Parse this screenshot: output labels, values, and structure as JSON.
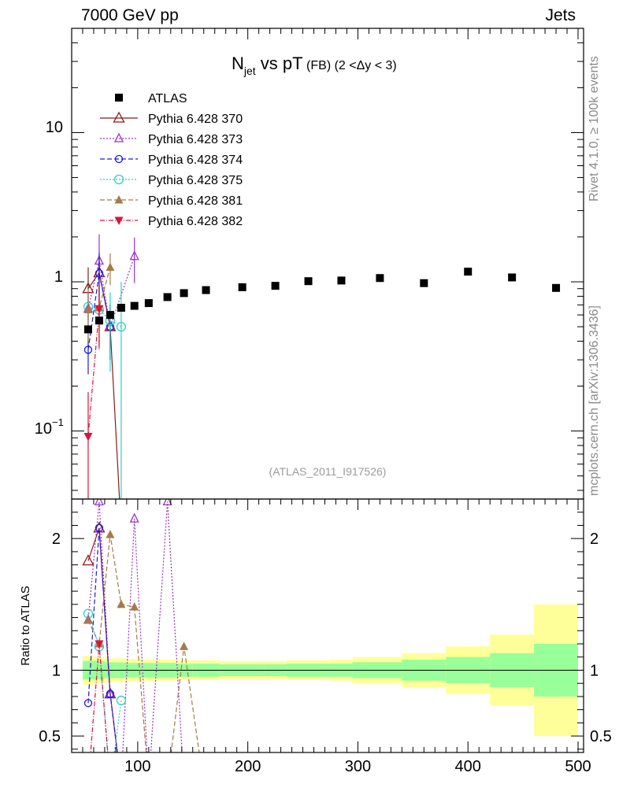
{
  "header": {
    "left": "7000 GeV pp",
    "right": "Jets"
  },
  "side": {
    "top": "Rivet 4.1.0, ≥ 100k events",
    "bottom": "mcplots.cern.ch [arXiv:1306.3436]"
  },
  "chart_data": {
    "type": "scatter",
    "title_main": "N",
    "title_sub": "jet",
    "title_rest": " vs pT",
    "title_small": " (FB)  (2 <Δy < 3)",
    "analysis_tag": "(ATLAS_2011_I917526)",
    "ratio_ylabel": "Ratio to ATLAS",
    "xlim": [
      40,
      505
    ],
    "ylim_main_log": [
      0.035,
      50
    ],
    "ylim_ratio": [
      0.375,
      2.3
    ],
    "x_ticks": [
      100,
      200,
      300,
      400,
      500
    ],
    "x_tick_labels": [
      "100",
      "200",
      "300",
      "400",
      "500"
    ],
    "main_tick_labels": {
      "t10": "10",
      "t1": "1",
      "t01_base": "10",
      "t01_exp": "−1"
    },
    "ratio_ticks": [
      0.5,
      1,
      2
    ],
    "ratio_tick_labels": [
      "0.5",
      "1",
      "2"
    ],
    "atlas": {
      "name": "ATLAS",
      "color": "#000000",
      "x": [
        55,
        65,
        75,
        85,
        97,
        110,
        127,
        142,
        162,
        195,
        225,
        255,
        285,
        320,
        360,
        400,
        440,
        480
      ],
      "y": [
        0.48,
        0.55,
        0.6,
        0.67,
        0.69,
        0.72,
        0.79,
        0.84,
        0.88,
        0.92,
        0.94,
        1.01,
        1.02,
        1.06,
        0.98,
        1.17,
        1.07,
        0.91
      ],
      "band_x": [
        50,
        60,
        70,
        80,
        90,
        105,
        115,
        135,
        150,
        175,
        215,
        235,
        275,
        295,
        340,
        380,
        420,
        460,
        500
      ],
      "band_inner": [
        0.07,
        0.07,
        0.06,
        0.06,
        0.055,
        0.055,
        0.055,
        0.05,
        0.05,
        0.045,
        0.045,
        0.05,
        0.05,
        0.06,
        0.08,
        0.1,
        0.13,
        0.2
      ],
      "band_outer": [
        0.11,
        0.1,
        0.09,
        0.09,
        0.085,
        0.08,
        0.08,
        0.075,
        0.075,
        0.07,
        0.07,
        0.075,
        0.08,
        0.1,
        0.13,
        0.18,
        0.27,
        0.5
      ]
    },
    "series": [
      {
        "name": "Pythia 6.428 370",
        "color": "#8b1a1a",
        "marker": "triangle-open",
        "dash": "",
        "x": [
          55,
          65,
          75,
          85,
          97
        ],
        "y": [
          0.9,
          1.15,
          0.5,
          0.0,
          0.0
        ],
        "err": [
          0.35,
          0.45,
          0.2,
          0,
          0
        ],
        "ratio_x": [
          55,
          65,
          75,
          85
        ],
        "ratio_y": [
          1.83,
          2.08,
          0.82,
          0.0
        ]
      },
      {
        "name": "Pythia 6.428 373",
        "color": "#9a32cd",
        "marker": "triangle-open-small",
        "dash": "2,2",
        "x": [
          55,
          65,
          75,
          97
        ],
        "y": [
          0.66,
          1.38,
          0.5,
          1.48
        ],
        "err": [
          0.2,
          0.7,
          0.2,
          0.5
        ],
        "ratio_x": [
          55,
          65,
          75,
          85,
          97,
          110,
          127,
          142
        ],
        "ratio_y": [
          1.38,
          2.28,
          0.82,
          0.0,
          2.15,
          0.0,
          2.28,
          0.0
        ]
      },
      {
        "name": "Pythia 6.428 374",
        "color": "#1c1cd6",
        "marker": "circle-open",
        "dash": "6,3",
        "x": [
          55,
          65,
          75
        ],
        "y": [
          0.35,
          1.14,
          0.5
        ],
        "err": [
          0.11,
          0.4,
          0.2
        ],
        "ratio_x": [
          55,
          65,
          75,
          85
        ],
        "ratio_y": [
          0.75,
          2.08,
          0.82,
          0.0
        ]
      },
      {
        "name": "Pythia 6.428 375",
        "color": "#2ed1c8",
        "marker": "circle-open-large",
        "dash": "2,2",
        "x": [
          55,
          65,
          75,
          85
        ],
        "y": [
          0.68,
          0.65,
          0.55,
          0.5
        ],
        "err": [
          0.2,
          0.3,
          0.3,
          0.5
        ],
        "ratio_x": [
          55,
          65,
          75,
          85
        ],
        "ratio_y": [
          1.43,
          1.18,
          0.0,
          0.77
        ]
      },
      {
        "name": "Pythia 6.428 381",
        "color": "#a57a49",
        "marker": "triangle-filled",
        "dash": "6,3",
        "x": [
          55,
          65,
          75
        ],
        "y": [
          0.65,
          0.67,
          1.25
        ],
        "err": [
          0.25,
          0.3,
          0.3
        ],
        "ratio_x": [
          55,
          65,
          75,
          85,
          97,
          110,
          127,
          142,
          160
        ],
        "ratio_y": [
          1.38,
          1.2,
          2.03,
          1.5,
          1.48,
          0.0,
          0.0,
          1.18,
          0.0
        ]
      },
      {
        "name": "Pythia 6.428 382",
        "color": "#dc143c",
        "marker": "triangle-down-filled",
        "dash": "6,2,1,2",
        "x": [
          55,
          65
        ],
        "y": [
          0.092,
          0.66
        ],
        "err": [
          0.09,
          0.3
        ],
        "ratio_x": [
          55,
          65,
          75
        ],
        "ratio_y": [
          0.0,
          1.2,
          0.0
        ]
      }
    ]
  }
}
